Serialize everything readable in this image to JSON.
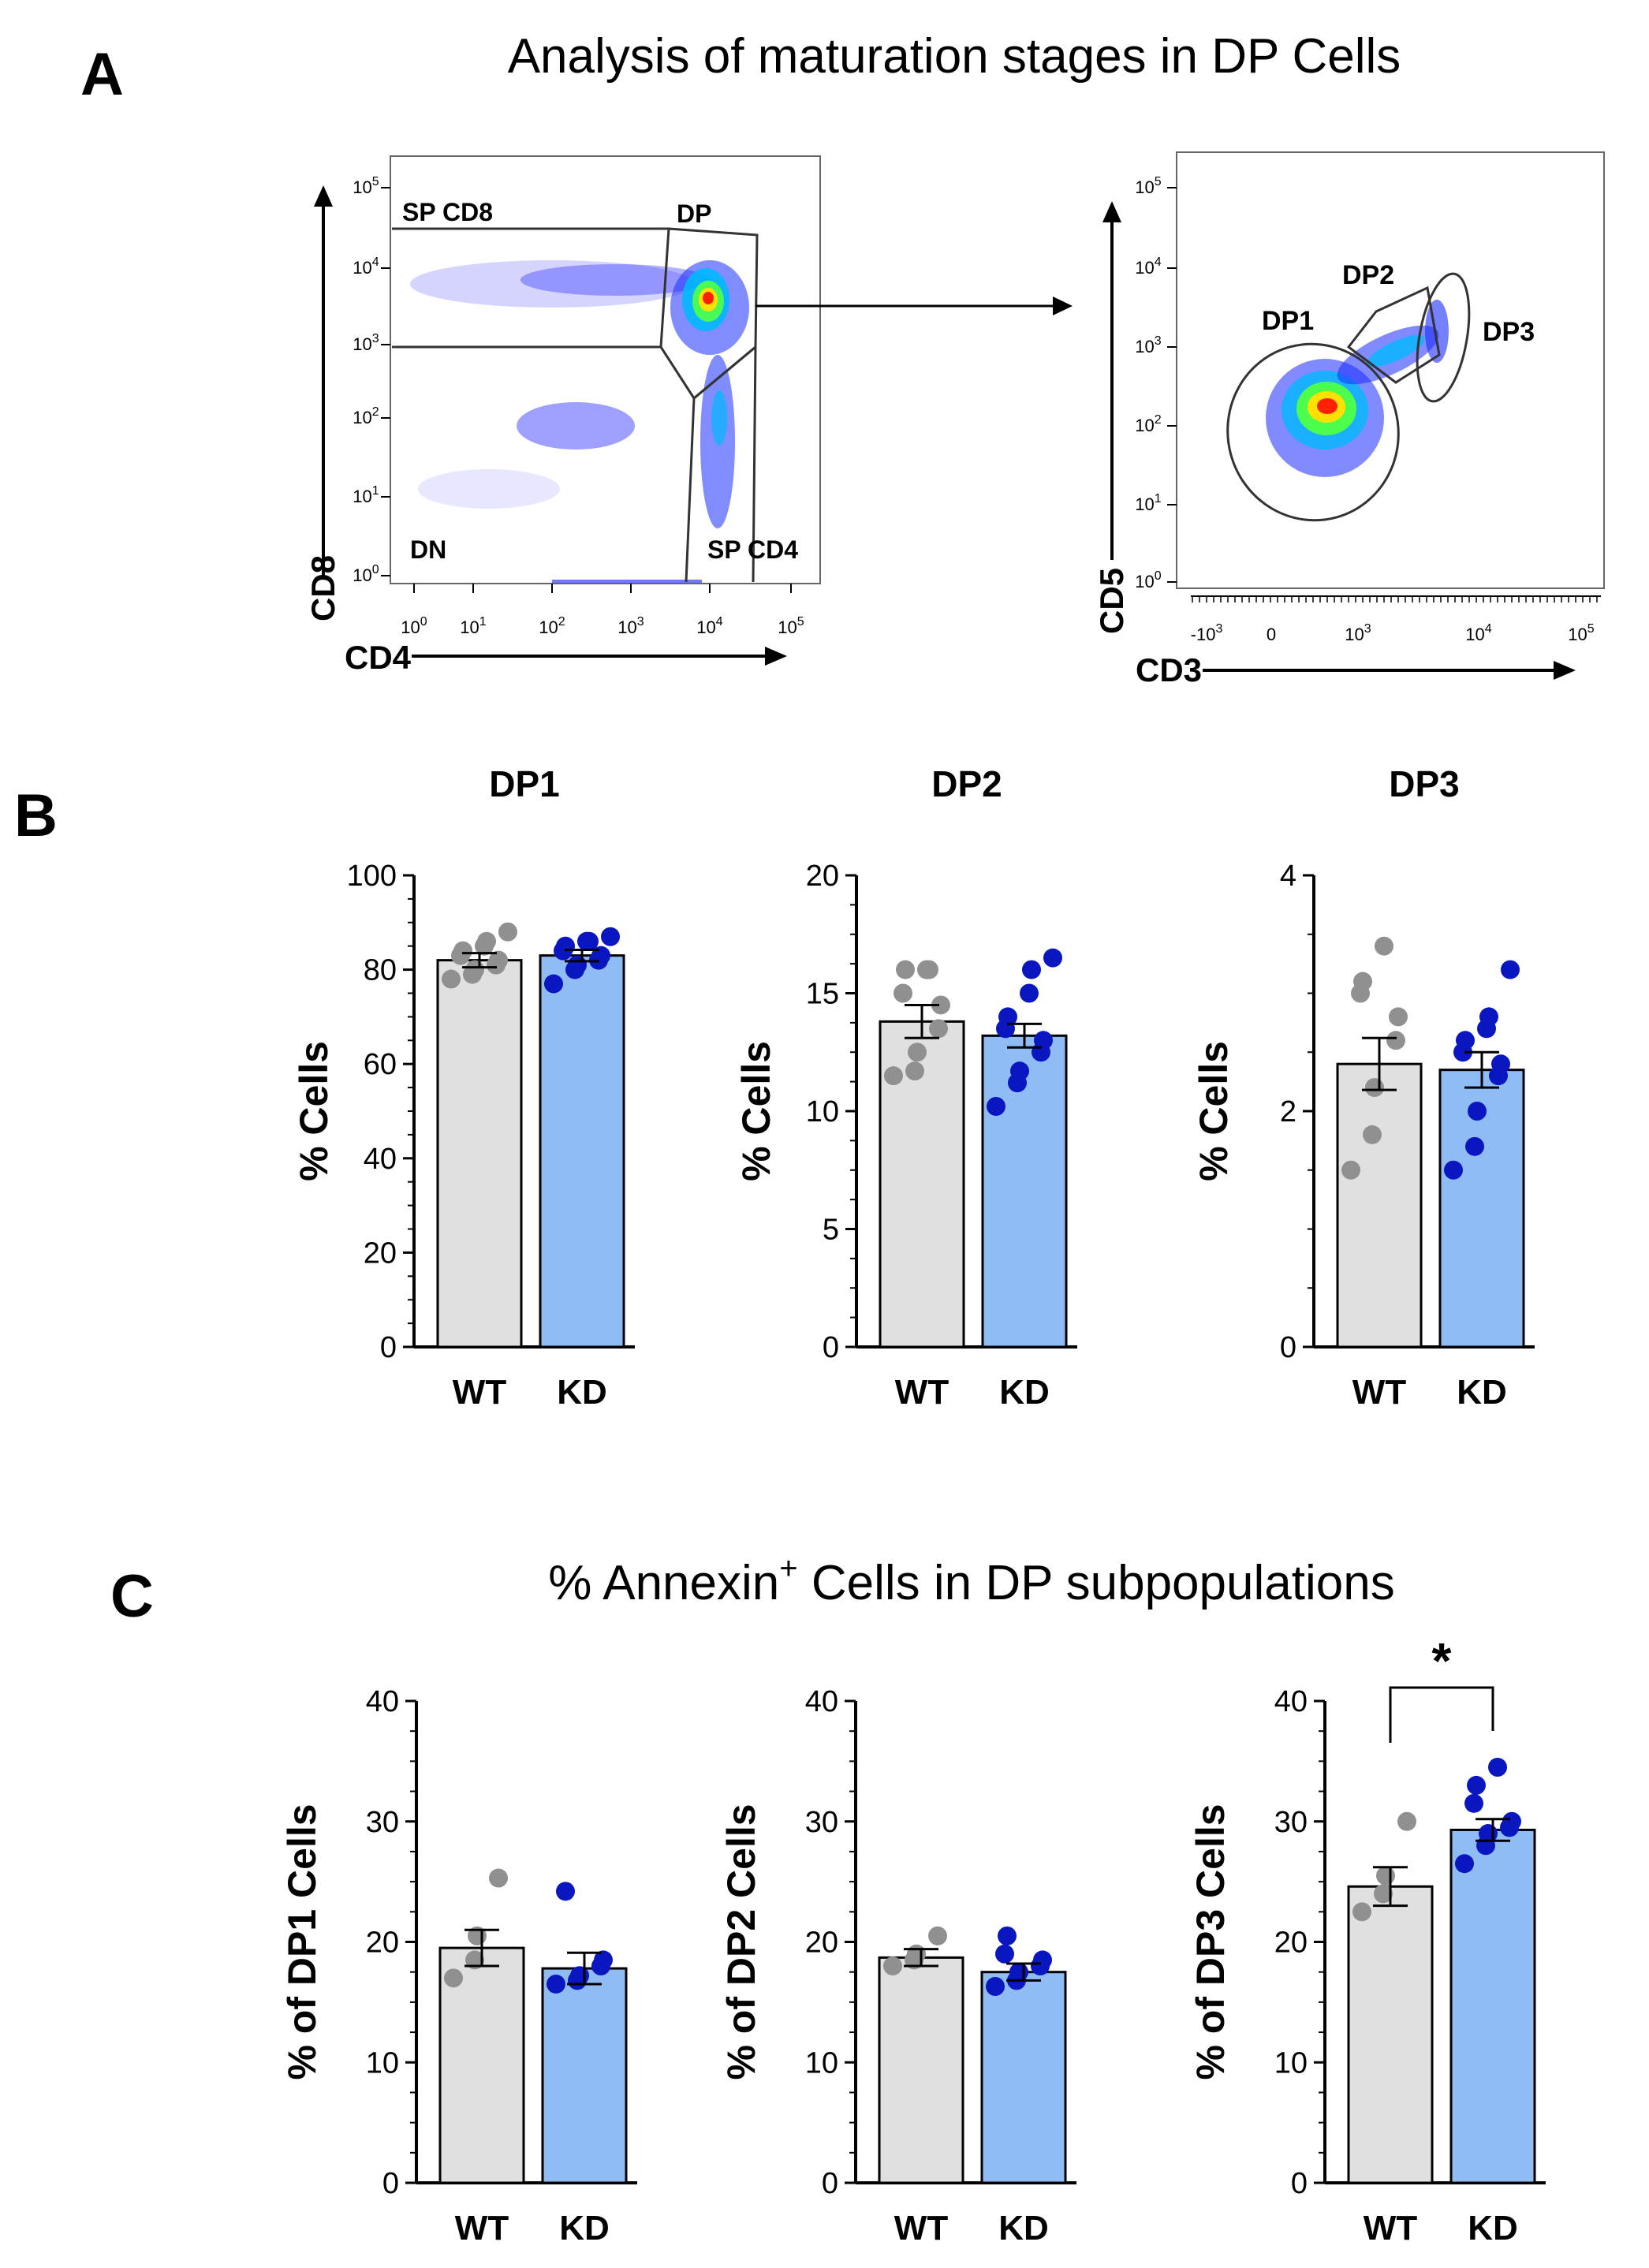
{
  "panel_a": {
    "letter": "A",
    "title": "Analysis of maturation stages in DP Cells",
    "plot1": {
      "ylabel": "CD8",
      "xlabel": "CD4",
      "gates": [
        "SP CD8",
        "DP",
        "DN",
        "SP CD4"
      ],
      "tick_labels": [
        "10",
        "10",
        "10",
        "10",
        "10",
        "10"
      ],
      "tick_exps": [
        "0",
        "1",
        "2",
        "3",
        "4",
        "5"
      ]
    },
    "plot2": {
      "ylabel": "CD5",
      "xlabel": "CD3",
      "gates": [
        "DP1",
        "DP2",
        "DP3"
      ],
      "y_tick_labels": [
        "10",
        "10",
        "10",
        "10",
        "10",
        "10"
      ],
      "y_tick_exps": [
        "0",
        "1",
        "2",
        "3",
        "4",
        "5"
      ],
      "x_tick_labels": [
        "-10",
        "0",
        "10",
        "10",
        "10"
      ],
      "x_tick_exps": [
        "3",
        "",
        "3",
        "4",
        "5"
      ]
    }
  },
  "panel_b": {
    "letter": "B"
  },
  "panel_c": {
    "letter": "C",
    "title_prefix": "% Annexin",
    "title_sup": "+",
    "title_suffix": " Cells in DP subpopulations",
    "significance": "*"
  },
  "colors": {
    "wt_bar": "#e0e0e0",
    "kd_bar": "#90bcf5",
    "wt_dot": "#909090",
    "kd_dot": "#0a16c0"
  },
  "chart_data": [
    {
      "type": "bar",
      "panel": "B",
      "title": "DP1",
      "ylabel": "% Cells",
      "categories": [
        "WT",
        "KD"
      ],
      "ylim": [
        0,
        100
      ],
      "yticks": [
        0,
        20,
        40,
        60,
        80,
        100
      ],
      "means": [
        82,
        83
      ],
      "sem": [
        1.5,
        1.2
      ],
      "points": [
        [
          78,
          79,
          80,
          81,
          82,
          83,
          84,
          85,
          86,
          88
        ],
        [
          77,
          80,
          81,
          82,
          83,
          84,
          85,
          86,
          86,
          87
        ]
      ]
    },
    {
      "type": "bar",
      "panel": "B",
      "title": "DP2",
      "ylabel": "% Cells",
      "categories": [
        "WT",
        "KD"
      ],
      "ylim": [
        0,
        20
      ],
      "yticks": [
        0,
        5,
        10,
        15,
        20
      ],
      "means": [
        13.8,
        13.2
      ],
      "sem": [
        0.7,
        0.5
      ],
      "points": [
        [
          11.5,
          11.7,
          12.5,
          13.5,
          14.5,
          15.0,
          16.0,
          16.0,
          16.0
        ],
        [
          10.2,
          11.2,
          11.7,
          12.5,
          13.0,
          13.5,
          14.0,
          15.0,
          16.0,
          16.5
        ]
      ]
    },
    {
      "type": "bar",
      "panel": "B",
      "title": "DP3",
      "ylabel": "% Cells",
      "categories": [
        "WT",
        "KD"
      ],
      "ylim": [
        0,
        4
      ],
      "yticks": [
        0,
        2,
        4
      ],
      "means": [
        2.4,
        2.35
      ],
      "sem": [
        0.22,
        0.15
      ],
      "points": [
        [
          1.5,
          1.8,
          2.2,
          2.6,
          2.8,
          3.0,
          3.1,
          3.4
        ],
        [
          1.5,
          1.7,
          2.0,
          2.3,
          2.4,
          2.5,
          2.6,
          2.7,
          2.8,
          3.2
        ]
      ]
    },
    {
      "type": "bar",
      "panel": "C",
      "ylabel": "% of DP1 Cells",
      "categories": [
        "WT",
        "KD"
      ],
      "ylim": [
        0,
        40
      ],
      "yticks": [
        0,
        10,
        20,
        30,
        40
      ],
      "means": [
        19.5,
        17.8
      ],
      "sem": [
        1.5,
        1.3
      ],
      "points": [
        [
          17.0,
          18.5,
          20.5,
          25.3
        ],
        [
          16.5,
          16.8,
          17.2,
          18.0,
          18.5,
          24.2
        ]
      ]
    },
    {
      "type": "bar",
      "panel": "C",
      "ylabel": "% of DP2 Cells",
      "categories": [
        "WT",
        "KD"
      ],
      "ylim": [
        0,
        40
      ],
      "yticks": [
        0,
        10,
        20,
        30,
        40
      ],
      "means": [
        18.7,
        17.5
      ],
      "sem": [
        0.7,
        0.7
      ],
      "points": [
        [
          18.0,
          18.5,
          19.0,
          20.5
        ],
        [
          16.3,
          16.8,
          17.5,
          18.0,
          18.5,
          19.0,
          20.5
        ]
      ]
    },
    {
      "type": "bar",
      "panel": "C",
      "ylabel": "% of DP3 Cells",
      "categories": [
        "WT",
        "KD"
      ],
      "ylim": [
        0,
        40
      ],
      "yticks": [
        0,
        10,
        20,
        30,
        40
      ],
      "means": [
        24.6,
        29.3
      ],
      "sem": [
        1.6,
        0.9
      ],
      "points": [
        [
          22.5,
          24.0,
          25.5,
          30.0
        ],
        [
          26.5,
          28.0,
          29.0,
          29.5,
          30.0,
          31.5,
          33.0,
          34.5
        ]
      ]
    }
  ]
}
